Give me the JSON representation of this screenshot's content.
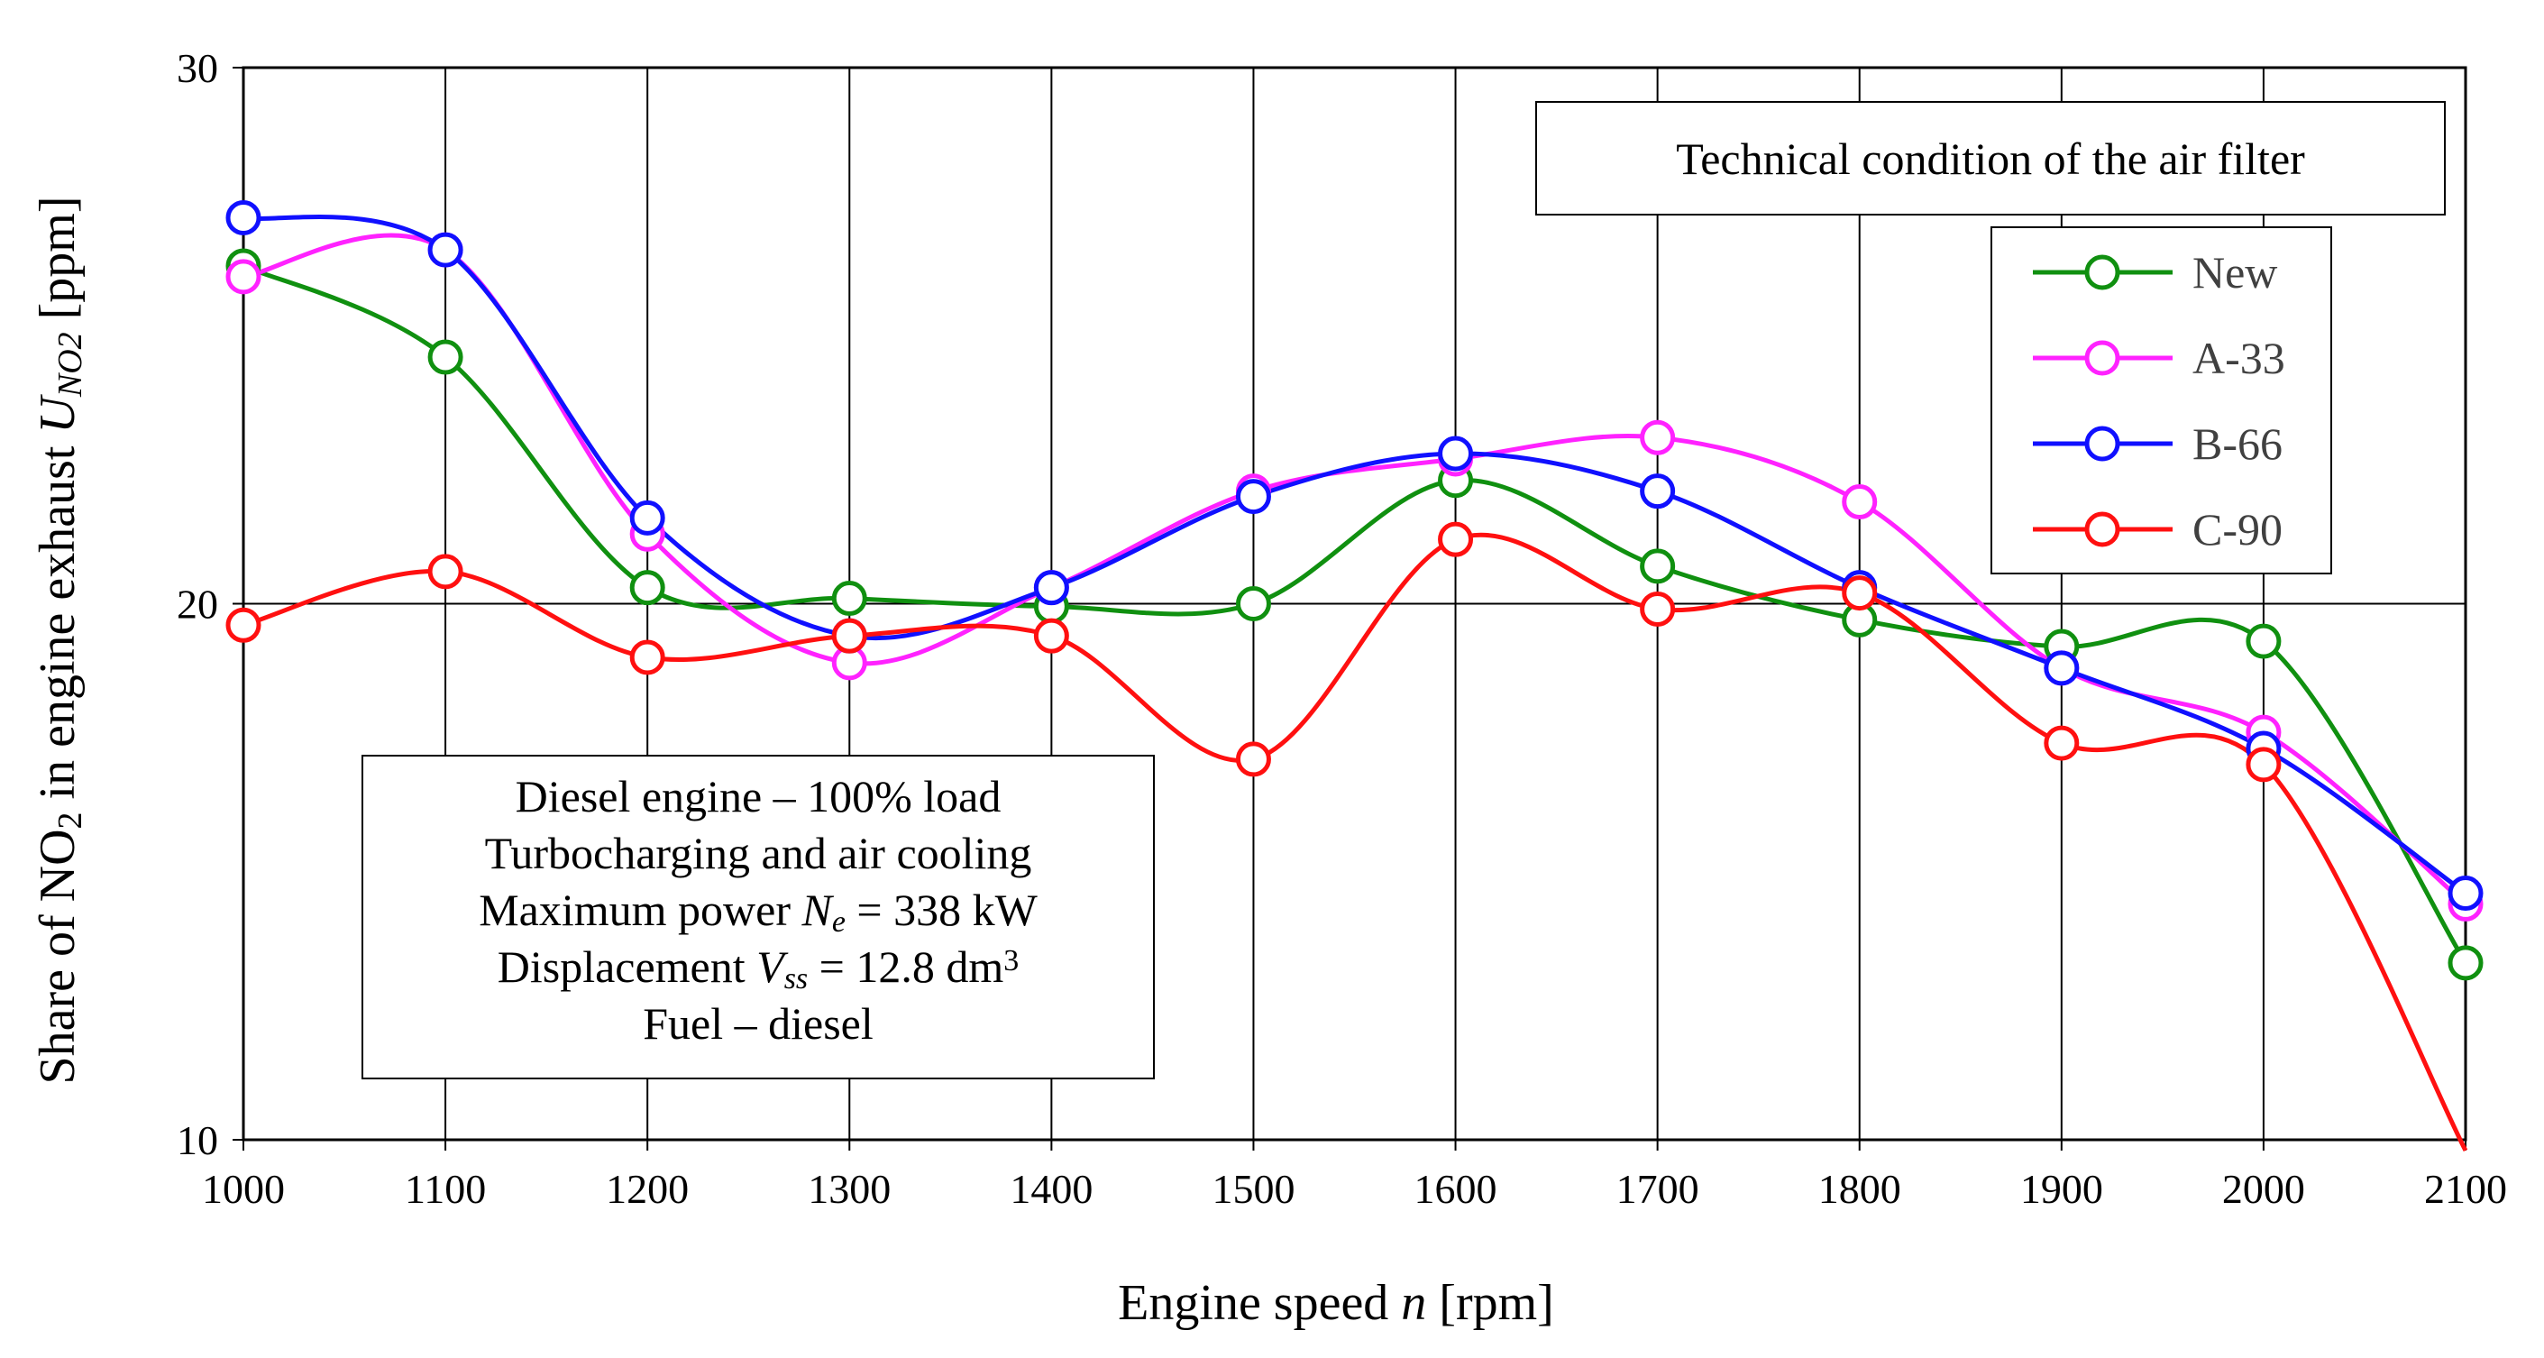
{
  "chart_data": {
    "type": "line",
    "x": [
      1000,
      1100,
      1200,
      1300,
      1400,
      1500,
      1600,
      1700,
      1800,
      1900,
      2000,
      2100
    ],
    "series": [
      {
        "name": "New",
        "color": "#109010",
        "values": [
          26.3,
          24.6,
          20.3,
          20.1,
          19.95,
          20.0,
          22.3,
          20.7,
          19.7,
          19.2,
          19.3,
          13.3
        ]
      },
      {
        "name": "A-33",
        "color": "#ff22ff",
        "values": [
          26.1,
          26.6,
          21.3,
          18.9,
          20.3,
          22.1,
          22.7,
          23.1,
          21.9,
          18.8,
          17.6,
          14.4
        ]
      },
      {
        "name": "B-66",
        "color": "#1010ff",
        "values": [
          27.2,
          26.6,
          21.6,
          19.4,
          20.3,
          22.0,
          22.8,
          22.1,
          20.3,
          18.8,
          17.3,
          14.6
        ]
      },
      {
        "name": "C-90",
        "color": "#ff1010",
        "values": [
          19.6,
          20.6,
          19.0,
          19.4,
          19.4,
          17.1,
          21.2,
          19.9,
          20.2,
          17.4,
          17.0,
          null
        ]
      }
    ],
    "c90_end_value": 9.8,
    "xlim": [
      1000,
      2100
    ],
    "ylim": [
      10,
      30
    ],
    "xticks": [
      1000,
      1100,
      1200,
      1300,
      1400,
      1500,
      1600,
      1700,
      1800,
      1900,
      2000,
      2100
    ],
    "yticks": [
      10,
      20,
      30
    ],
    "grid": true,
    "xlabel": {
      "pre": "Engine speed ",
      "var": "n",
      "post": " [rpm]"
    },
    "ylabel": {
      "pre": "Share of  NO",
      "sub1": "2",
      "mid": " in engine exhaust ",
      "var": "U",
      "sub2": "NO2",
      "post": " [ppm]"
    },
    "legend_title": "Technical condition  of the air filter",
    "legend_position": "top-right",
    "engine_box": {
      "line1": "Diesel engine – 100% load",
      "line2": "Turbocharging and air cooling",
      "line3_pre": "Maximum power ",
      "line3_var": "N",
      "line3_sub": "e",
      "line3_post": " = 338 kW",
      "line4_pre": "Displacement ",
      "line4_var": "V",
      "line4_sub": "ss",
      "line4_post": " = 12.8 dm",
      "line4_sup": "3",
      "line5": "Fuel – diesel"
    }
  }
}
